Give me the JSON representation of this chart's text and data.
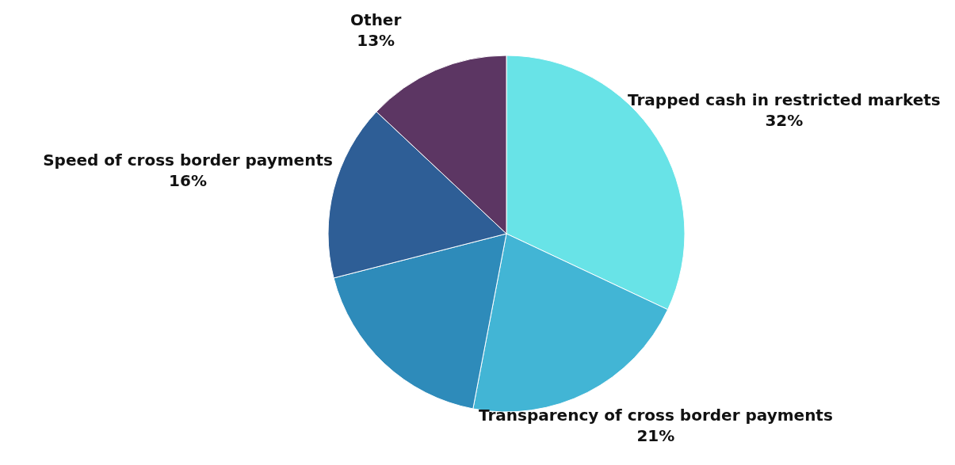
{
  "chart_data": {
    "type": "pie",
    "categories": [
      "Trapped cash in restricted markets",
      "Transparency of cross border payments",
      null,
      "Speed of cross border payments",
      "Other"
    ],
    "values": [
      32,
      21,
      18,
      16,
      13
    ],
    "value_labels": [
      "32%",
      "21%",
      null,
      "16%",
      "13%"
    ],
    "colors": [
      "#68e3e7",
      "#42b5d5",
      "#2e8bba",
      "#2e5e96",
      "#5c3663"
    ],
    "legend": false
  }
}
